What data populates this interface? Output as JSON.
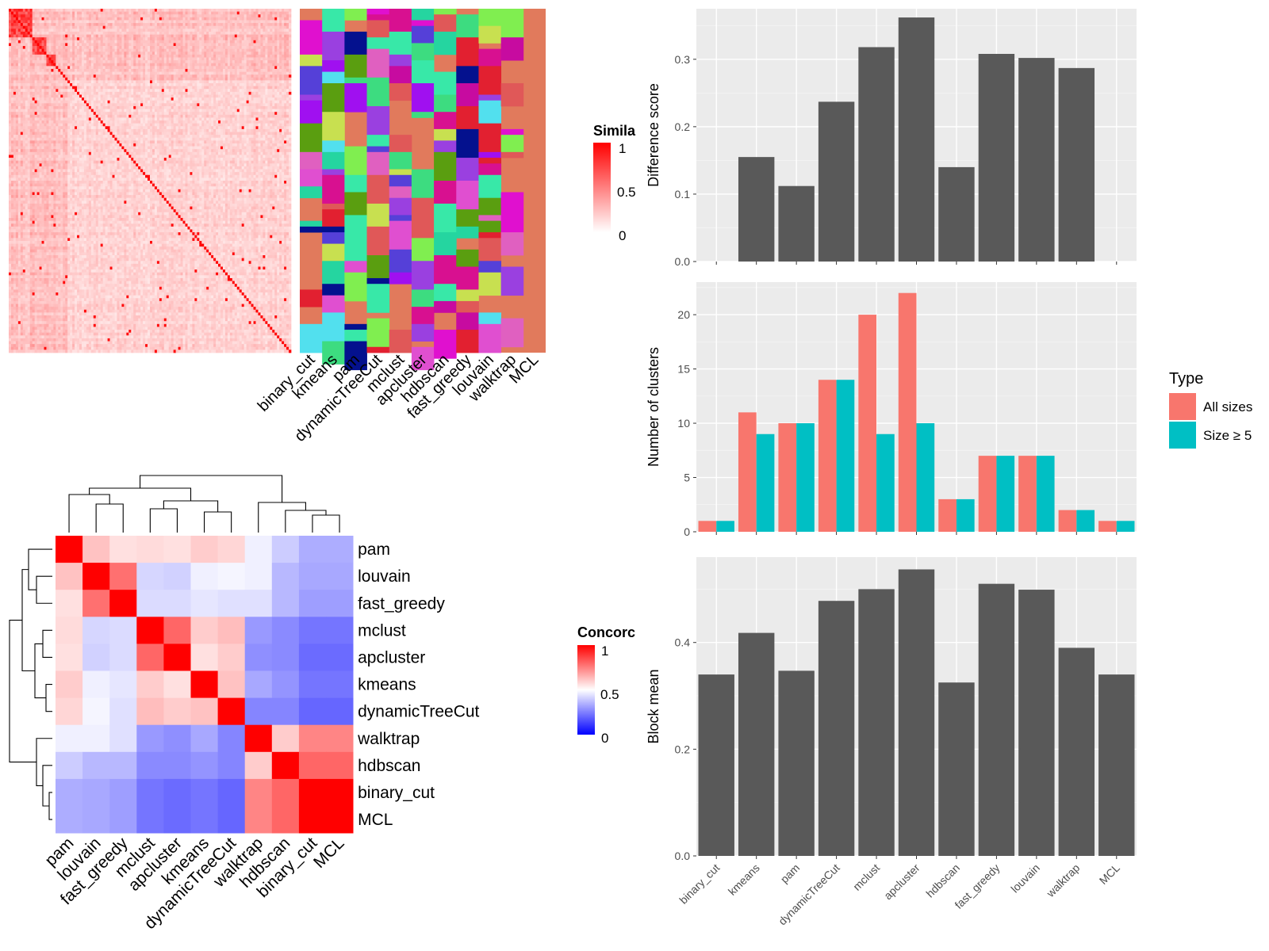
{
  "methods": [
    "binary_cut",
    "kmeans",
    "pam",
    "dynamicTreeCut",
    "mclust",
    "apcluster",
    "hdbscan",
    "fast_greedy",
    "louvain",
    "walktrap",
    "MCL"
  ],
  "chart_data": [
    {
      "type": "heatmap",
      "id": "similarity-heatmap",
      "legend": {
        "title": "Simila",
        "ticks": [
          "1",
          "0.5",
          "0"
        ],
        "colors": [
          "#ffffff",
          "#ff0000"
        ]
      },
      "matrix_size": 120,
      "diagonal_blocks": [
        10,
        6,
        4,
        5,
        3,
        6,
        4,
        7,
        5,
        5,
        6,
        4,
        7,
        6,
        3,
        5,
        8,
        5,
        4,
        6,
        3,
        5,
        3
      ],
      "background_level": 0.18
    },
    {
      "type": "table",
      "id": "cluster-assignment-panel",
      "column_labels": [
        "binary_cut",
        "kmeans",
        "pam",
        "dynamicTreeCut",
        "mclust",
        "apcluster",
        "hdbscan",
        "fast_greedy",
        "louvain",
        "walktrap",
        "MCL"
      ],
      "background_color": "#e17a5c",
      "palette": [
        "#e010cf",
        "#c70ba0",
        "#a010f0",
        "#5a9e10",
        "#80ee50",
        "#3ddc80",
        "#38e8a8",
        "#5540d8",
        "#9a40e0",
        "#e22030",
        "#e04fd0",
        "#04118e",
        "#52e0ee",
        "#e05858",
        "#25d5a0",
        "#c8e050",
        "#d81090",
        "#e060c0"
      ]
    },
    {
      "type": "bar",
      "id": "difference-score",
      "categories": [
        "binary_cut",
        "kmeans",
        "pam",
        "dynamicTreeCut",
        "mclust",
        "apcluster",
        "hdbscan",
        "fast_greedy",
        "louvain",
        "walktrap",
        "MCL"
      ],
      "values": [
        0.0,
        0.155,
        0.112,
        0.237,
        0.318,
        0.362,
        0.14,
        0.308,
        0.302,
        0.287,
        0.0
      ],
      "ylabel": "Difference score",
      "yticks": [
        "0.0",
        "0.1",
        "0.2",
        "0.3"
      ],
      "ylim": [
        0,
        0.375
      ]
    },
    {
      "type": "bar",
      "id": "number-of-clusters",
      "categories": [
        "binary_cut",
        "kmeans",
        "pam",
        "dynamicTreeCut",
        "mclust",
        "apcluster",
        "hdbscan",
        "fast_greedy",
        "louvain",
        "walktrap",
        "MCL"
      ],
      "series": [
        {
          "name": "All sizes",
          "color": "#f8766d",
          "values": [
            1,
            11,
            10,
            14,
            20,
            22,
            3,
            7,
            7,
            2,
            1
          ]
        },
        {
          "name": "Size ≥ 5",
          "color": "#00bfc4",
          "values": [
            1,
            9,
            10,
            14,
            9,
            10,
            3,
            7,
            7,
            2,
            1
          ]
        }
      ],
      "ylabel": "Number of clusters",
      "yticks": [
        "0",
        "5",
        "10",
        "15",
        "20"
      ],
      "ylim": [
        0,
        23
      ],
      "legend": {
        "title": "Type",
        "position": "right"
      }
    },
    {
      "type": "bar",
      "id": "block-mean",
      "categories": [
        "binary_cut",
        "kmeans",
        "pam",
        "dynamicTreeCut",
        "mclust",
        "apcluster",
        "hdbscan",
        "fast_greedy",
        "louvain",
        "walktrap",
        "MCL"
      ],
      "values": [
        0.34,
        0.418,
        0.347,
        0.478,
        0.5,
        0.537,
        0.325,
        0.51,
        0.499,
        0.39,
        0.34
      ],
      "ylabel": "Block mean",
      "yticks": [
        "0.0",
        "0.2",
        "0.4"
      ],
      "ylim": [
        0,
        0.56
      ]
    },
    {
      "type": "heatmap",
      "id": "concordance-heatmap",
      "order": [
        "pam",
        "louvain",
        "fast_greedy",
        "mclust",
        "apcluster",
        "kmeans",
        "dynamicTreeCut",
        "walktrap",
        "hdbscan",
        "binary_cut",
        "MCL"
      ],
      "legend": {
        "title": "Concorc",
        "ticks": [
          "1",
          "0.5",
          "0"
        ],
        "colors": [
          "#0000ff",
          "#ffffff",
          "#ff0000"
        ]
      },
      "matrix": [
        [
          1.0,
          0.62,
          0.56,
          0.57,
          0.56,
          0.6,
          0.58,
          0.47,
          0.4,
          0.34,
          0.34
        ],
        [
          0.62,
          1.0,
          0.78,
          0.42,
          0.41,
          0.47,
          0.48,
          0.47,
          0.36,
          0.33,
          0.33
        ],
        [
          0.56,
          0.78,
          1.0,
          0.43,
          0.43,
          0.45,
          0.44,
          0.44,
          0.36,
          0.31,
          0.31
        ],
        [
          0.57,
          0.42,
          0.43,
          1.0,
          0.8,
          0.6,
          0.63,
          0.3,
          0.27,
          0.23,
          0.23
        ],
        [
          0.56,
          0.41,
          0.43,
          0.8,
          1.0,
          0.56,
          0.6,
          0.28,
          0.27,
          0.21,
          0.21
        ],
        [
          0.6,
          0.47,
          0.45,
          0.6,
          0.56,
          1.0,
          0.62,
          0.33,
          0.29,
          0.23,
          0.23
        ],
        [
          0.58,
          0.48,
          0.44,
          0.63,
          0.6,
          0.62,
          1.0,
          0.26,
          0.26,
          0.2,
          0.2
        ],
        [
          0.47,
          0.47,
          0.44,
          0.3,
          0.28,
          0.33,
          0.26,
          1.0,
          0.6,
          0.74,
          0.74
        ],
        [
          0.4,
          0.36,
          0.36,
          0.27,
          0.27,
          0.29,
          0.26,
          0.6,
          1.0,
          0.8,
          0.8
        ],
        [
          0.34,
          0.33,
          0.31,
          0.23,
          0.21,
          0.23,
          0.2,
          0.74,
          0.8,
          1.0,
          1.0
        ],
        [
          0.34,
          0.33,
          0.31,
          0.23,
          0.21,
          0.23,
          0.2,
          0.74,
          0.8,
          1.0,
          1.0
        ]
      ]
    }
  ]
}
